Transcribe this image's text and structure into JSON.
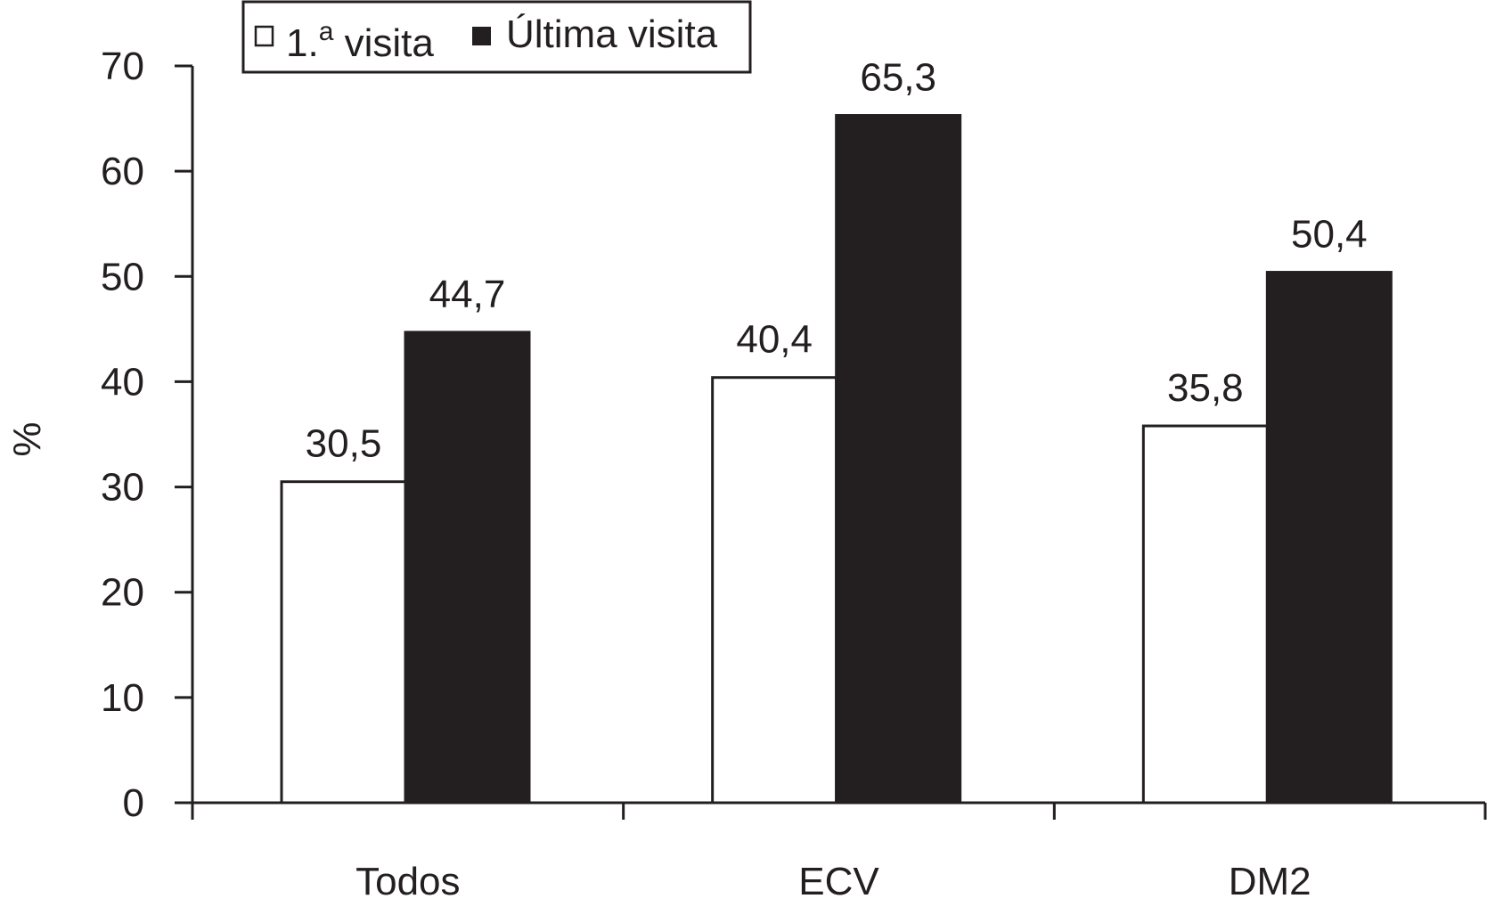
{
  "chart_data": {
    "type": "bar",
    "categories": [
      "Todos",
      "ECV",
      "DM2"
    ],
    "series": [
      {
        "name": "1.ª visita",
        "values": [
          30.5,
          40.4,
          35.8
        ],
        "color": "#ffffff"
      },
      {
        "name": "Última visita",
        "values": [
          44.7,
          65.3,
          50.4
        ],
        "color": "#231f20"
      }
    ],
    "value_labels": [
      [
        "30,5",
        "40,4",
        "35,8"
      ],
      [
        "44,7",
        "65,3",
        "50,4"
      ]
    ],
    "ylabel": "%",
    "xlabel": "",
    "ylim": [
      0,
      70
    ],
    "yticks": [
      0,
      10,
      20,
      30,
      40,
      50,
      60,
      70
    ],
    "grid": false,
    "legend_position": "top-left",
    "legend": {
      "first_main": "1.",
      "first_sup": "a",
      "first_rest": " visita",
      "second": "Última visita"
    }
  }
}
